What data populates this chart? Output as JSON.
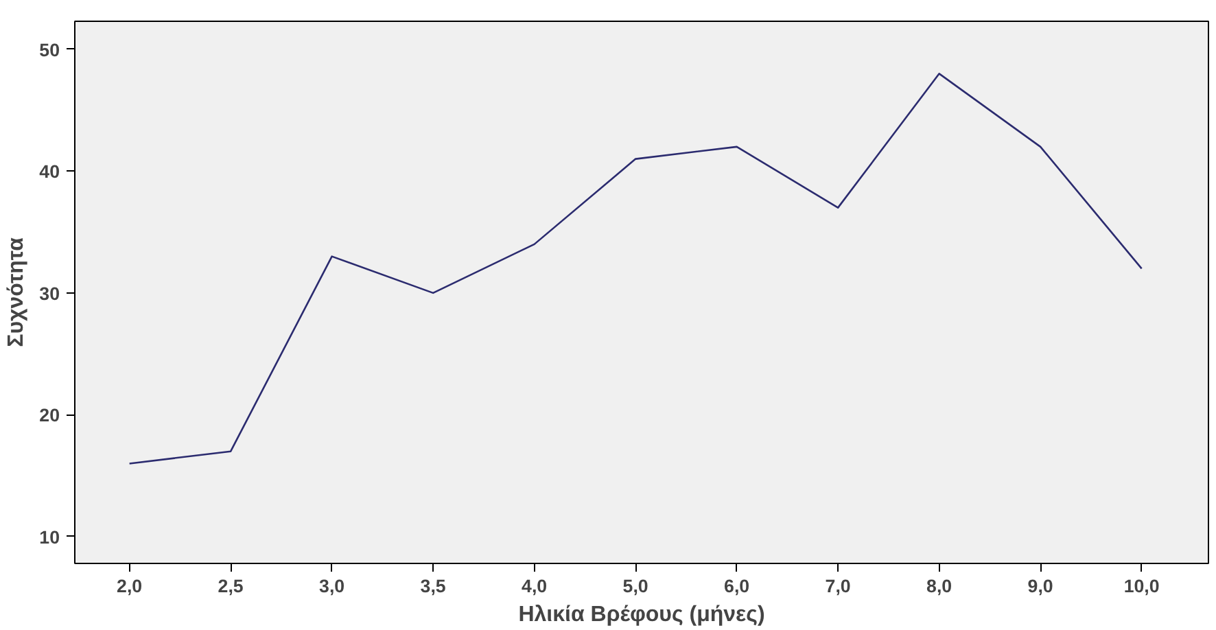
{
  "chart_data": {
    "type": "line",
    "xlabel": "Ηλικία Βρέφους (μήνες)",
    "ylabel": "Συχνότητα",
    "categories": [
      "2,0",
      "2,5",
      "3,0",
      "3,5",
      "4,0",
      "5,0",
      "6,0",
      "7,0",
      "8,0",
      "9,0",
      "10,0"
    ],
    "series": [
      {
        "color": "#2b2b6f",
        "values": [
          16,
          17,
          33,
          30,
          34,
          41,
          42,
          37,
          48,
          42,
          32
        ]
      }
    ],
    "ylim": [
      7.8,
      52.3
    ],
    "yticks": [
      10,
      20,
      30,
      40,
      50
    ],
    "grid": false,
    "marker": "none",
    "line_style": "solid"
  }
}
